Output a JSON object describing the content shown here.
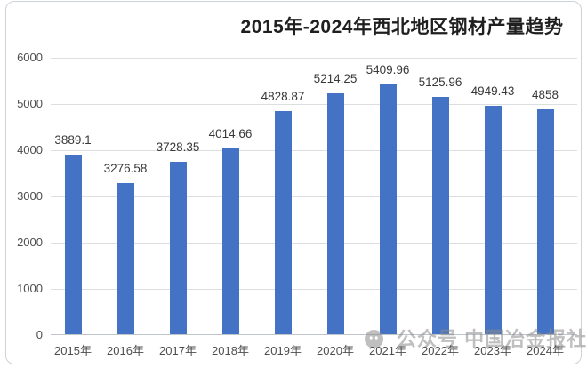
{
  "title": "2015年-2024年西北地区钢材产量趋势",
  "watermark": {
    "icon": "wechat-icon",
    "text": "公众号 中国冶金报社"
  },
  "colors": {
    "bar": "#4472C4",
    "gridline": "#dcdfe2",
    "axis_line": "#bfc5ca",
    "tick_text": "#4e4e4e",
    "value_label_text": "#383838",
    "title_text": "#1f1f1f",
    "watermark_gray": "#8c8c8c",
    "background": "#ffffff"
  },
  "chart_data": {
    "type": "bar",
    "title": "2015年-2024年西北地区钢材产量趋势",
    "categories": [
      "2015年",
      "2016年",
      "2017年",
      "2018年",
      "2019年",
      "2020年",
      "2021年",
      "2022年",
      "2023年",
      "2024年"
    ],
    "values": [
      3889.1,
      3276.58,
      3728.35,
      4014.66,
      4828.87,
      5214.25,
      5409.96,
      5125.96,
      4949.43,
      4858
    ],
    "value_labels": [
      "3889.1",
      "3276.58",
      "3728.35",
      "4014.66",
      "4828.87",
      "5214.25",
      "5409.96",
      "5125.96",
      "4949.43",
      "4858"
    ],
    "xlabel": "",
    "ylabel": "",
    "ylim": [
      0,
      6000
    ],
    "yticks": [
      0,
      1000,
      2000,
      3000,
      4000,
      5000,
      6000
    ],
    "grid": true,
    "legend": false,
    "data_labels_shown": true,
    "bar_color": "#4472C4"
  }
}
